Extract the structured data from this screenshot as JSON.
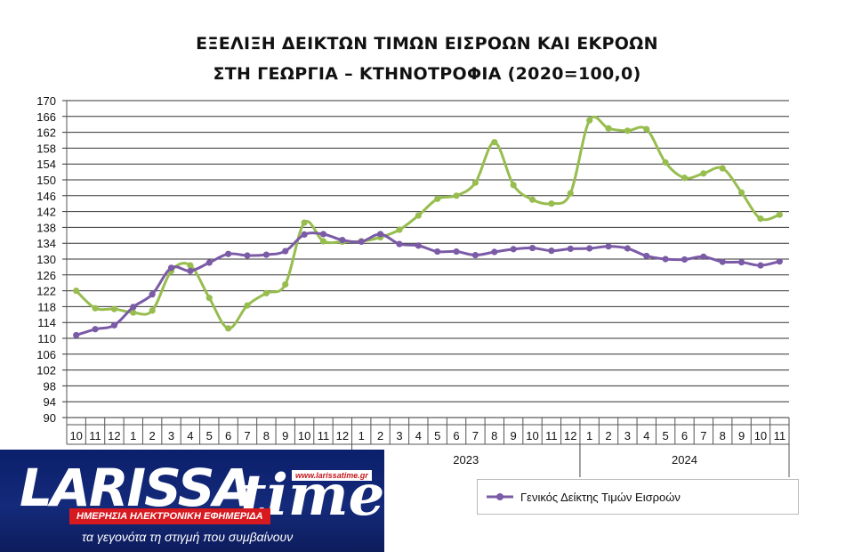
{
  "title_line1": "ΕΞΕΛΙΞΗ ΔΕΙΚΤΩΝ ΤΙΜΩΝ ΕΙΣΡΟΩΝ ΚΑΙ ΕΚΡΟΩΝ",
  "title_line2": "ΣΤΗ ΓΕΩΡΓΙΑ – ΚΤΗΝΟΤΡΟΦΙΑ (2020=100,0)",
  "colors": {
    "green": "#97bd4f",
    "purple": "#7b5aa6",
    "grid": "#222222"
  },
  "logo": {
    "name": "LARISSA",
    "name_suffix": "time",
    "url": "www.larissatime.gr",
    "tagline": "ΗΜΕΡΗΣΙΑ ΗΛΕΚΤΡΟΝΙΚΗ ΕΦΗΜΕΡΙΔΑ",
    "slogan": "τα γεγονότα τη στιγμή που συμβαίνουν"
  },
  "chart_data": {
    "type": "line",
    "ylim": [
      90,
      170
    ],
    "y_ticks": [
      90,
      94,
      98,
      102,
      106,
      110,
      114,
      118,
      122,
      126,
      130,
      134,
      138,
      142,
      146,
      150,
      154,
      158,
      162,
      166,
      170
    ],
    "grid": true,
    "legend_position": "bottom-right",
    "categories": [
      "10",
      "11",
      "12",
      "1",
      "2",
      "3",
      "4",
      "5",
      "6",
      "7",
      "8",
      "9",
      "10",
      "11",
      "12",
      "1",
      "2",
      "3",
      "4",
      "5",
      "6",
      "7",
      "8",
      "9",
      "10",
      "11",
      "12",
      "1",
      "2",
      "3",
      "4",
      "5",
      "6",
      "7",
      "8",
      "9",
      "10",
      "11"
    ],
    "year_labels": [
      {
        "label": "2023",
        "start": 15,
        "end": 26
      },
      {
        "label": "2024",
        "start": 27,
        "end": 37
      }
    ],
    "series": [
      {
        "name": "",
        "color": "#97bd4f",
        "values": [
          122.0,
          117.6,
          117.4,
          116.5,
          117.0,
          127.0,
          128.4,
          120.2,
          112.5,
          118.3,
          121.4,
          123.6,
          139.2,
          134.5,
          134.4,
          134.5,
          135.5,
          137.4,
          141.0,
          145.2,
          146.0,
          149.3,
          159.5,
          148.7,
          145.0,
          144.0,
          146.6,
          165.0,
          163.0,
          162.4,
          162.8,
          154.4,
          150.5,
          151.6,
          152.9,
          146.8,
          140.2,
          141.2
        ]
      },
      {
        "name": "Γενικός Δείκτης Τιμών Εισροών",
        "color": "#7b5aa6",
        "values": [
          110.8,
          112.3,
          113.3,
          117.9,
          121.1,
          127.8,
          127.0,
          129.1,
          131.3,
          130.9,
          131.1,
          132.0,
          136.2,
          136.3,
          134.8,
          134.4,
          136.3,
          133.8,
          133.4,
          131.9,
          131.9,
          131.0,
          131.8,
          132.5,
          132.8,
          132.1,
          132.6,
          132.7,
          133.2,
          132.7,
          130.8,
          130.0,
          129.9,
          130.6,
          129.3,
          129.2,
          128.4,
          129.4
        ]
      }
    ]
  }
}
